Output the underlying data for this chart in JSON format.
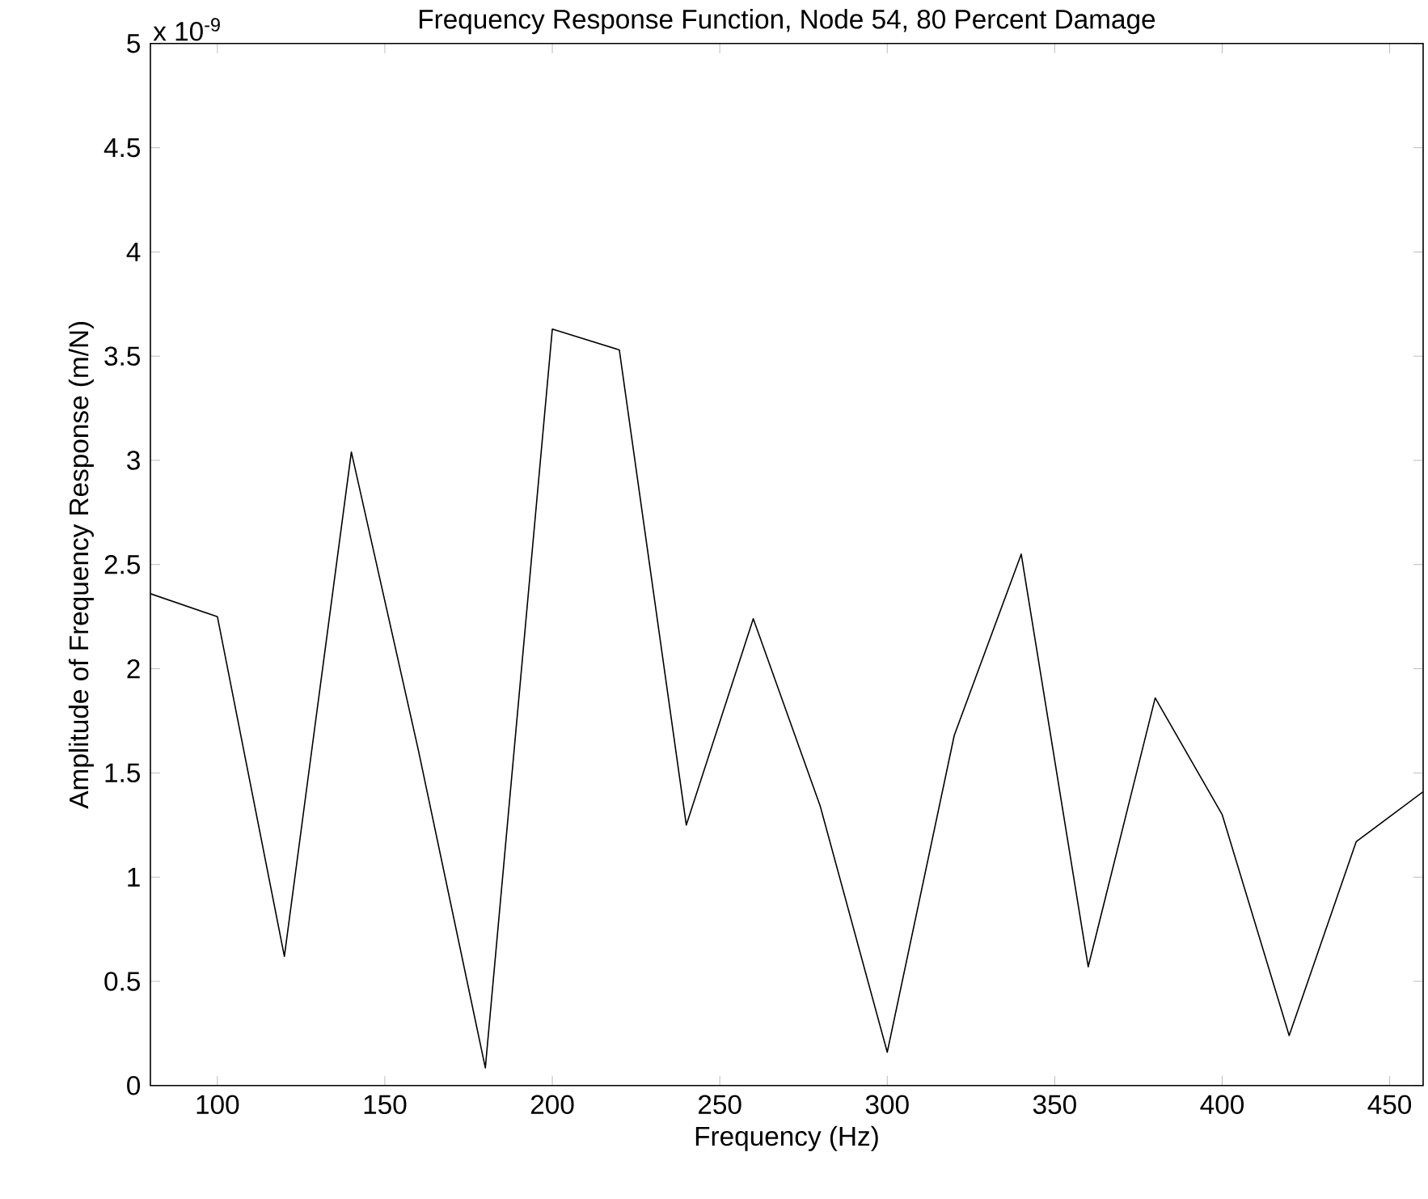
{
  "chart_data": {
    "type": "line",
    "title": "Frequency Response Function, Node 54, 80 Percent Damage",
    "xlabel": "Frequency (Hz)",
    "ylabel": "Amplitude of Frequency Response (m/N)",
    "annotations": [
      "x 10$^{-9}$"
    ],
    "x": [
      80,
      100,
      120,
      140,
      160,
      180,
      200,
      220,
      240,
      260,
      280,
      300,
      320,
      340,
      360,
      380,
      400,
      420,
      440,
      460
    ],
    "series": [
      {
        "color": "#000000",
        "values": [
          2.36,
          2.25,
          0.62,
          3.04,
          1.61,
          0.085,
          3.63,
          3.53,
          1.25,
          2.24,
          1.34,
          0.16,
          1.68,
          2.55,
          0.57,
          1.86,
          1.3,
          0.24,
          1.17,
          1.41
        ]
      }
    ],
    "xlim": [
      80,
      460
    ],
    "ylim": [
      0,
      5
    ],
    "xticks": [
      100,
      150,
      200,
      250,
      300,
      350,
      400,
      450
    ],
    "yticks": [
      0,
      0.5,
      1,
      1.5,
      2,
      2.5,
      3,
      3.5,
      4,
      4.5,
      5
    ],
    "marker": "none",
    "line_style": "solid"
  }
}
